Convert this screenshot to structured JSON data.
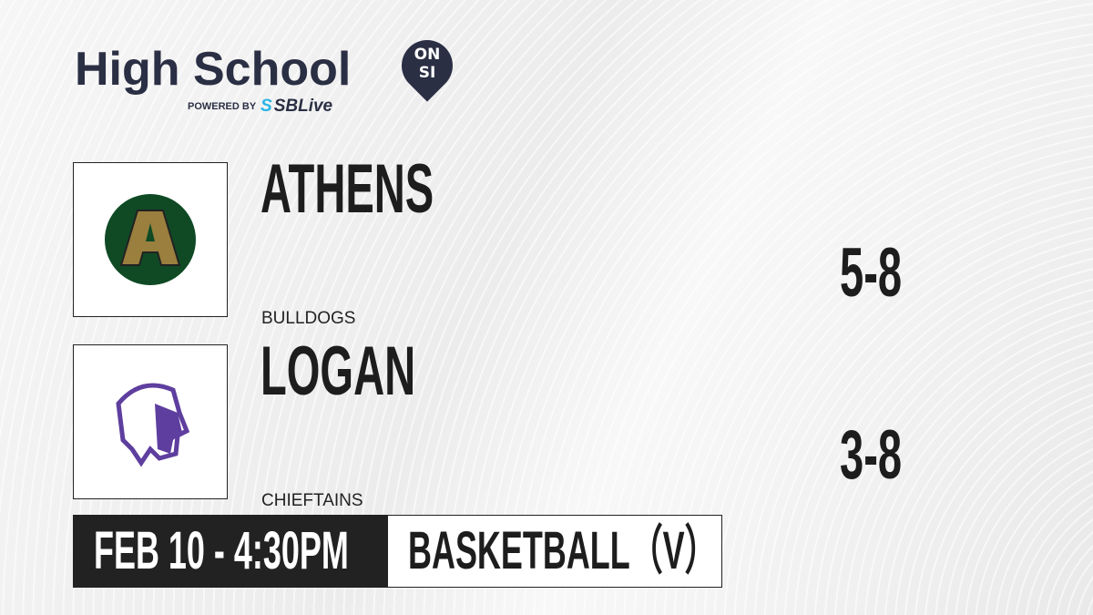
{
  "brand": {
    "title": "High School",
    "badge_top": "ON",
    "badge_bottom": "SI",
    "powered_by": "POWERED BY",
    "partner_prefix": "S",
    "partner": "SBLive"
  },
  "teams": [
    {
      "name": "ATHENS",
      "mascot": "BULLDOGS",
      "record": "5-8",
      "logo_letter": "A",
      "colors": {
        "primary": "#0f4a25",
        "secondary": "#9a7f3e"
      }
    },
    {
      "name": "LOGAN",
      "mascot": "CHIEFTAINS",
      "record": "3-8",
      "colors": {
        "primary": "#5e3e9e"
      }
    }
  ],
  "game": {
    "datetime": "FEB 10 - 4:30PM",
    "sport": "BASKETBALL（V）"
  }
}
